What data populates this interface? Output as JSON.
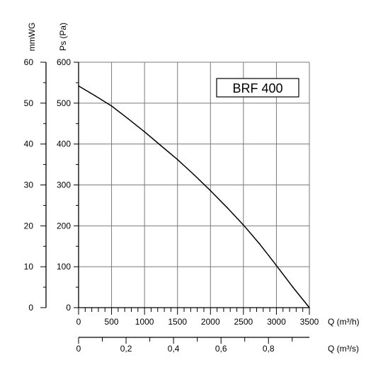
{
  "chart_data": {
    "type": "line",
    "title": "BRF 400",
    "axes": {
      "left_outer": {
        "label": "mmWG",
        "ticks": [
          "0",
          "10",
          "20",
          "30",
          "40",
          "50",
          "60"
        ]
      },
      "left_inner": {
        "label": "Ps (Pa)",
        "ticks": [
          "0",
          "100",
          "200",
          "300",
          "400",
          "500",
          "600"
        ]
      },
      "bottom_main": {
        "label": "Q (m³/h)",
        "ticks": [
          "0",
          "500",
          "1000",
          "1500",
          "2000",
          "2500",
          "3000",
          "3500"
        ]
      },
      "bottom_secondary": {
        "label": "Q (m³/s)",
        "ticks": [
          "0",
          "0,2",
          "0,4",
          "0,6",
          "0,8"
        ]
      }
    },
    "xlim": [
      0,
      3500
    ],
    "ylim": [
      0,
      600
    ],
    "grid": true,
    "series": [
      {
        "x": [
          0,
          250,
          500,
          750,
          1000,
          1250,
          1500,
          1750,
          2000,
          2250,
          2500,
          2750,
          3000,
          3250,
          3500
        ],
        "y": [
          542,
          518,
          493,
          462,
          430,
          396,
          362,
          325,
          286,
          245,
          202,
          155,
          103,
          50,
          0
        ]
      }
    ]
  }
}
